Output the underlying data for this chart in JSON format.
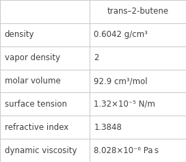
{
  "header_col": "trans–2-butene",
  "rows": [
    [
      "density",
      "0.6042 g/cm³"
    ],
    [
      "vapor density",
      "2"
    ],
    [
      "molar volume",
      "92.9 cm³/mol"
    ],
    [
      "surface tension",
      "1.32×10⁻⁵ N/m"
    ],
    [
      "refractive index",
      "1.3848"
    ],
    [
      "dynamic viscosity",
      "8.028×10⁻⁶ Pa s"
    ]
  ],
  "col_split": 0.48,
  "bg_color": "#ffffff",
  "line_color": "#cccccc",
  "text_color": "#404040",
  "header_fontsize": 8.5,
  "body_fontsize": 8.5,
  "figwidth": 2.72,
  "figheight": 2.37,
  "dpi": 100
}
